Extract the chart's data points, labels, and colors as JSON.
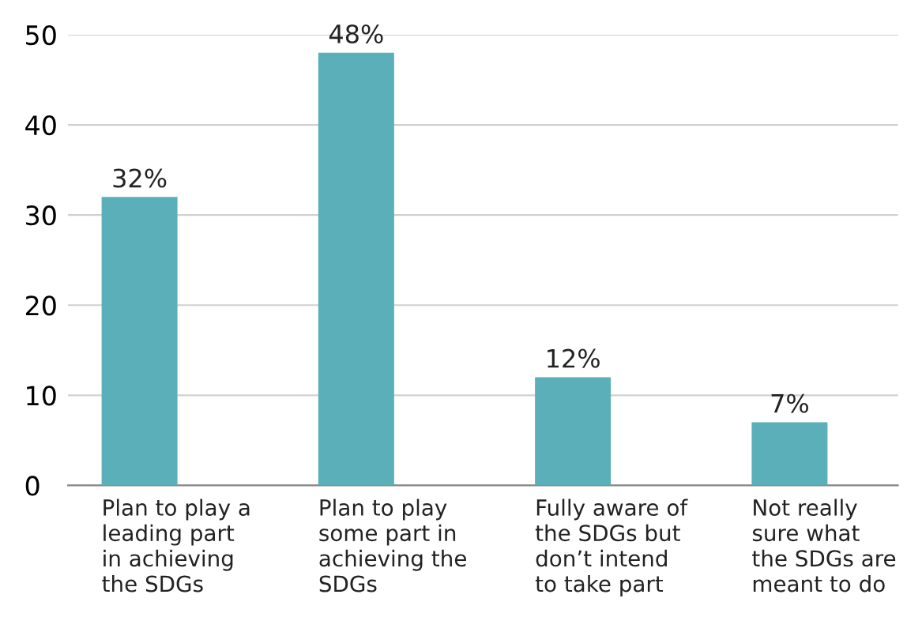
{
  "chart_data": {
    "type": "bar",
    "categories": [
      "Plan to play a\nleading part\nin achieving\nthe SDGs",
      "Plan to play\nsome part in\nachieving the\nSDGs",
      "Fully aware of\nthe SDGs but\ndon’t intend\nto take part",
      "Not really\nsure what\nthe SDGs are\nmeant to do"
    ],
    "values": [
      32,
      48,
      12,
      7
    ],
    "value_labels": [
      "32%",
      "48%",
      "12%",
      "7%"
    ],
    "color": "#5aafb8",
    "ylim": [
      0,
      50
    ],
    "yticks": [
      0,
      10,
      20,
      30,
      40,
      50
    ],
    "grid": "y",
    "legend": false
  }
}
